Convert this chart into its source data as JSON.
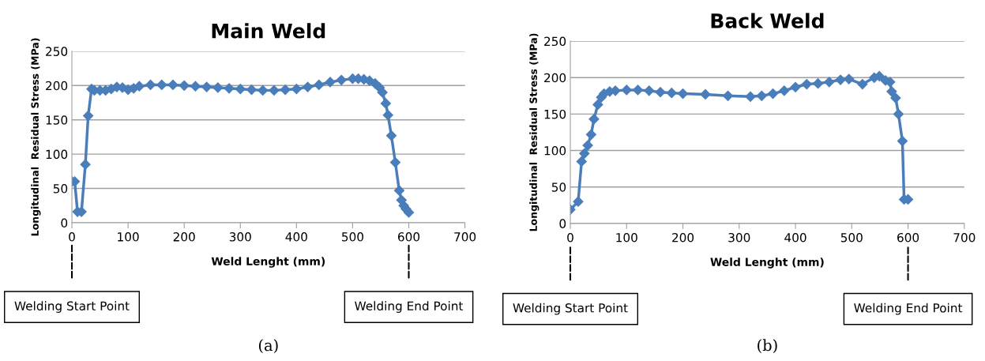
{
  "chart_data": [
    {
      "type": "line",
      "title": "Main Weld",
      "xlabel": "Weld Lenght (mm)",
      "ylabel": "Longitudinal  Residual Stress (MPa)",
      "series": [
        {
          "color": "#4a7ebb",
          "x": [
            0,
            5,
            10,
            17,
            24,
            29,
            35,
            40,
            50,
            60,
            70,
            80,
            90,
            100,
            110,
            120,
            140,
            160,
            180,
            200,
            220,
            240,
            260,
            280,
            300,
            320,
            340,
            360,
            380,
            400,
            420,
            440,
            460,
            480,
            500,
            510,
            520,
            530,
            540,
            548,
            553,
            559,
            563,
            569,
            576,
            583,
            587,
            591,
            595,
            600
          ],
          "values": [
            60,
            60,
            16,
            16,
            85,
            156,
            195,
            193,
            193,
            193,
            195,
            198,
            197,
            194,
            196,
            199,
            201,
            201,
            201,
            200,
            199,
            198,
            197,
            196,
            195,
            194,
            193,
            193,
            194,
            195,
            198,
            201,
            205,
            208,
            210,
            210,
            209,
            207,
            203,
            197,
            190,
            174,
            157,
            127,
            88,
            47,
            33,
            25,
            20,
            15
          ]
        }
      ],
      "xlim": [
        0,
        700
      ],
      "xticks": [
        0,
        100,
        200,
        300,
        400,
        500,
        600,
        700
      ],
      "ylim": [
        0,
        250
      ],
      "yticks": [
        0,
        50,
        100,
        150,
        200,
        250
      ],
      "grid": "y",
      "legend": false,
      "marker": "diamond",
      "line_style": "solid",
      "annotations": [
        "Welding Start Point",
        "Welding End Point",
        "(a)"
      ]
    },
    {
      "type": "line",
      "title": "Back Weld",
      "xlabel": "Weld Lenght (mm)",
      "ylabel": "Longitudinal  Residual Stress (MPa)",
      "series": [
        {
          "color": "#4a7ebb",
          "x": [
            0,
            14,
            20,
            25,
            31,
            37,
            42,
            49,
            55,
            60,
            70,
            80,
            100,
            120,
            140,
            160,
            180,
            200,
            240,
            280,
            320,
            340,
            360,
            380,
            400,
            420,
            440,
            460,
            480,
            495,
            519,
            540,
            549,
            560,
            568,
            571,
            578,
            583,
            590,
            593,
            600
          ],
          "values": [
            19,
            30,
            85,
            96,
            107,
            122,
            143,
            163,
            173,
            178,
            181,
            182,
            183,
            183,
            182,
            180,
            179,
            178,
            177,
            175,
            174,
            175,
            178,
            182,
            187,
            191,
            192,
            194,
            197,
            198,
            191,
            200,
            202,
            196,
            194,
            181,
            172,
            150,
            113,
            33,
            33
          ]
        }
      ],
      "xlim": [
        0,
        700
      ],
      "xticks": [
        0,
        100,
        200,
        300,
        400,
        500,
        600,
        700
      ],
      "ylim": [
        0,
        250
      ],
      "yticks": [
        0,
        50,
        100,
        150,
        200,
        250
      ],
      "grid": "y",
      "legend": false,
      "marker": "diamond",
      "line_style": "solid",
      "annotations": [
        "Welding Start Point",
        "Welding End Point",
        "(b)"
      ]
    }
  ]
}
